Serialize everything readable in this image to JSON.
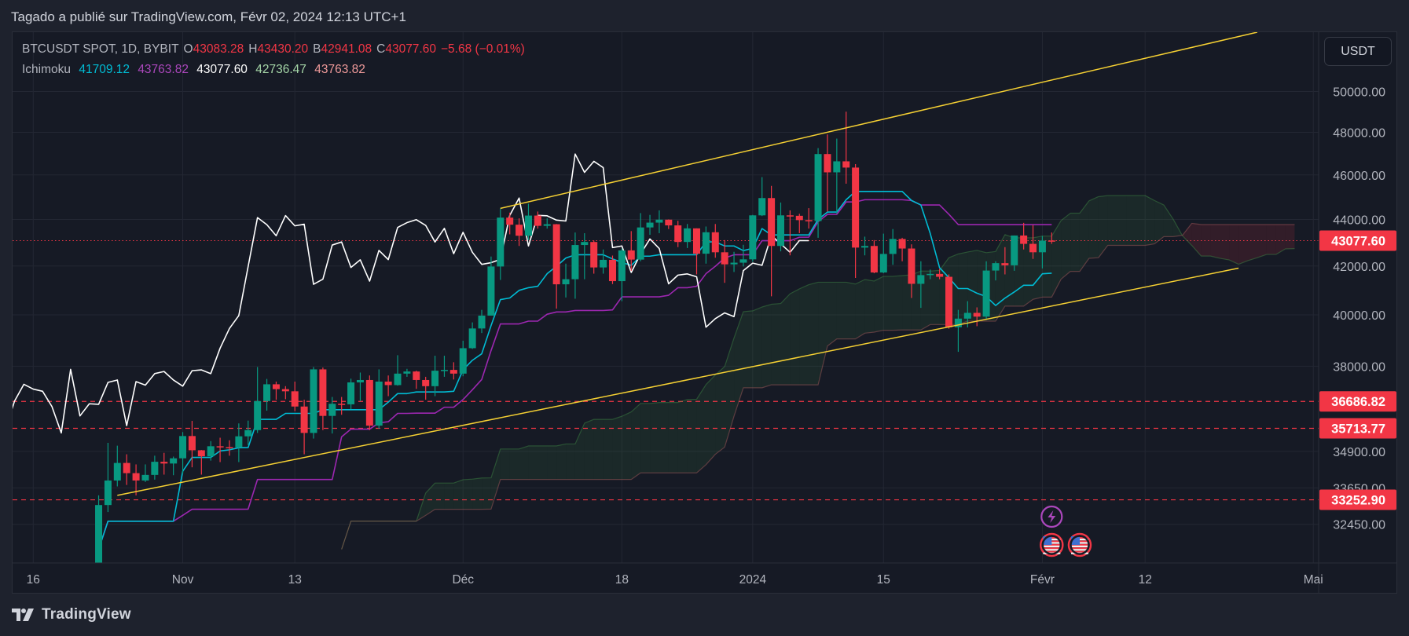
{
  "header": {
    "publisher": "Tagado a publié sur TradingView.com, Févr 02, 2024 12:13 UTC+1"
  },
  "legend": {
    "symbol": "BTCUSDT SPOT, 1D, BYBIT",
    "o_label": "O",
    "o": "43083.28",
    "h_label": "H",
    "h": "43430.20",
    "l_label": "B",
    "l": "42941.08",
    "c_label": "C",
    "c": "43077.60",
    "change": "−5.68 (−0.01%)",
    "indicator": "Ichimoku",
    "conversion": "41709.12",
    "base": "43763.82",
    "lagging": "43077.60",
    "lead_a": "42736.47",
    "lead_b": "43763.82"
  },
  "currency_button": "USDT",
  "footer": {
    "logo_text": "TradingView"
  },
  "colors": {
    "up": "#089981",
    "down": "#f23645",
    "conversion": "#00bcd4",
    "base": "#9c27b0",
    "lagging": "#ffffff",
    "lead_a": "#a5d6a7",
    "lead_b": "#ef9a9a",
    "trendline": "#f5d033",
    "level": "#f23645"
  },
  "chart_data": {
    "type": "candlestick",
    "symbol": "BTCUSDT",
    "interval": "1D",
    "y_scale": "log",
    "ylim": [
      31600,
      51500
    ],
    "grid": true,
    "y_ticks": [
      "50000.00",
      "48000.00",
      "46000.00",
      "44000.00",
      "42000.00",
      "40000.00",
      "38000.00",
      "34900.00",
      "33650.00",
      "32450.00"
    ],
    "x_ticks": [
      {
        "label": "16",
        "date": "2023-10-16"
      },
      {
        "label": "Nov",
        "date": "2023-11-01"
      },
      {
        "label": "13",
        "date": "2023-11-13"
      },
      {
        "label": "Déc",
        "date": "2023-12-01"
      },
      {
        "label": "18",
        "date": "2023-12-18"
      },
      {
        "label": "2024",
        "date": "2024-01-01"
      },
      {
        "label": "15",
        "date": "2024-01-15"
      },
      {
        "label": "Févr",
        "date": "2024-02-01"
      },
      {
        "label": "12",
        "date": "2024-02-12"
      },
      {
        "label": "Mai",
        "date": "2024-03-01"
      }
    ],
    "candles_columns": [
      "date",
      "open",
      "high",
      "low",
      "close"
    ],
    "candles": [
      [
        "2023-10-23",
        29990,
        33400,
        29900,
        33080
      ],
      [
        "2023-10-24",
        33080,
        35200,
        32850,
        33900
      ],
      [
        "2023-10-25",
        33900,
        35100,
        33700,
        34500
      ],
      [
        "2023-10-26",
        34500,
        34800,
        33750,
        34150
      ],
      [
        "2023-10-27",
        34150,
        34450,
        33400,
        33900
      ],
      [
        "2023-10-28",
        33900,
        34450,
        33850,
        34090
      ],
      [
        "2023-10-29",
        34090,
        34750,
        33930,
        34540
      ],
      [
        "2023-10-30",
        34540,
        34850,
        34100,
        34480
      ],
      [
        "2023-10-31",
        34480,
        34720,
        34080,
        34660
      ],
      [
        "2023-11-01",
        34660,
        35580,
        34120,
        35440
      ],
      [
        "2023-11-02",
        35440,
        35980,
        34350,
        34940
      ],
      [
        "2023-11-03",
        34940,
        34950,
        34100,
        34730
      ],
      [
        "2023-11-04",
        34730,
        35260,
        34580,
        35080
      ],
      [
        "2023-11-05",
        35080,
        35380,
        34530,
        35050
      ],
      [
        "2023-11-06",
        35050,
        35290,
        34750,
        35040
      ],
      [
        "2023-11-07",
        35040,
        35890,
        34530,
        35430
      ],
      [
        "2023-11-08",
        35430,
        35990,
        35120,
        35650
      ],
      [
        "2023-11-09",
        35650,
        37970,
        35550,
        36700
      ],
      [
        "2023-11-10",
        36700,
        37520,
        36350,
        37320
      ],
      [
        "2023-11-11",
        37320,
        37420,
        36750,
        37140
      ],
      [
        "2023-11-12",
        37140,
        37250,
        36770,
        37060
      ],
      [
        "2023-11-13",
        37060,
        37420,
        36330,
        36500
      ],
      [
        "2023-11-14",
        36500,
        36750,
        34800,
        35550
      ],
      [
        "2023-11-15",
        35550,
        37970,
        35350,
        37880
      ],
      [
        "2023-11-16",
        37880,
        37950,
        35650,
        36160
      ],
      [
        "2023-11-17",
        36160,
        36850,
        35530,
        36600
      ],
      [
        "2023-11-18",
        36600,
        36850,
        36200,
        36580
      ],
      [
        "2023-11-19",
        36580,
        37530,
        36400,
        37390
      ],
      [
        "2023-11-20",
        37390,
        37760,
        36700,
        37480
      ],
      [
        "2023-11-21",
        37480,
        37650,
        35650,
        35810
      ],
      [
        "2023-11-22",
        35810,
        37880,
        35700,
        37420
      ],
      [
        "2023-11-23",
        37420,
        37650,
        36880,
        37290
      ],
      [
        "2023-11-24",
        37290,
        38420,
        37270,
        37720
      ],
      [
        "2023-11-25",
        37720,
        37900,
        37600,
        37800
      ],
      [
        "2023-11-26",
        37800,
        37830,
        37150,
        37480
      ],
      [
        "2023-11-27",
        37480,
        37600,
        36750,
        37250
      ],
      [
        "2023-11-28",
        37250,
        38400,
        36880,
        37830
      ],
      [
        "2023-11-29",
        37830,
        38400,
        37600,
        37860
      ],
      [
        "2023-11-30",
        37860,
        38150,
        37500,
        37720
      ],
      [
        "2023-12-01",
        37720,
        38980,
        37620,
        38690
      ],
      [
        "2023-12-02",
        38690,
        39700,
        38660,
        39460
      ],
      [
        "2023-12-03",
        39460,
        40200,
        39280,
        39970
      ],
      [
        "2023-12-04",
        39970,
        42400,
        39970,
        41980
      ],
      [
        "2023-12-05",
        41980,
        44480,
        41420,
        44080
      ],
      [
        "2023-12-06",
        44080,
        44300,
        43350,
        43770
      ],
      [
        "2023-12-07",
        43770,
        44050,
        42850,
        43290
      ],
      [
        "2023-12-08",
        43290,
        44700,
        43100,
        44170
      ],
      [
        "2023-12-09",
        44170,
        44350,
        43600,
        43720
      ],
      [
        "2023-12-10",
        43720,
        44050,
        43600,
        43790
      ],
      [
        "2023-12-11",
        43790,
        43800,
        40250,
        41240
      ],
      [
        "2023-12-12",
        41240,
        42100,
        40700,
        41450
      ],
      [
        "2023-12-13",
        41450,
        43430,
        40650,
        42890
      ],
      [
        "2023-12-14",
        42890,
        43400,
        41450,
        43020
      ],
      [
        "2023-12-15",
        43020,
        43080,
        41680,
        41940
      ],
      [
        "2023-12-16",
        41940,
        42700,
        41680,
        42260
      ],
      [
        "2023-12-17",
        42260,
        42440,
        41250,
        41370
      ],
      [
        "2023-12-18",
        41370,
        42740,
        40550,
        42660
      ],
      [
        "2023-12-19",
        42660,
        43490,
        41800,
        42270
      ],
      [
        "2023-12-20",
        42270,
        44280,
        42200,
        43650
      ],
      [
        "2023-12-21",
        43650,
        44200,
        43330,
        43860
      ],
      [
        "2023-12-22",
        43860,
        44400,
        43400,
        43990
      ],
      [
        "2023-12-23",
        43990,
        44000,
        43580,
        43740
      ],
      [
        "2023-12-24",
        43740,
        43940,
        42800,
        43020
      ],
      [
        "2023-12-25",
        43020,
        43800,
        42760,
        43610
      ],
      [
        "2023-12-26",
        43610,
        43610,
        41650,
        42520
      ],
      [
        "2023-12-27",
        42520,
        43690,
        42100,
        43440
      ],
      [
        "2023-12-28",
        43440,
        43800,
        42350,
        42580
      ],
      [
        "2023-12-29",
        42580,
        43100,
        41300,
        42070
      ],
      [
        "2023-12-30",
        42070,
        42600,
        41750,
        42140
      ],
      [
        "2023-12-31",
        42140,
        42900,
        41980,
        42280
      ],
      [
        "2024-01-01",
        42280,
        44200,
        42180,
        44180
      ],
      [
        "2024-01-02",
        44180,
        45900,
        44150,
        44950
      ],
      [
        "2024-01-03",
        44950,
        45500,
        40750,
        42850
      ],
      [
        "2024-01-04",
        42850,
        44750,
        42620,
        44180
      ],
      [
        "2024-01-05",
        44180,
        44400,
        42450,
        44160
      ],
      [
        "2024-01-06",
        44160,
        44250,
        43400,
        43970
      ],
      [
        "2024-01-07",
        43970,
        44500,
        43600,
        43930
      ],
      [
        "2024-01-08",
        43930,
        47250,
        43200,
        46970
      ],
      [
        "2024-01-09",
        46970,
        47900,
        44350,
        46120
      ],
      [
        "2024-01-10",
        46120,
        47700,
        44250,
        46630
      ],
      [
        "2024-01-11",
        46630,
        49000,
        45600,
        46340
      ],
      [
        "2024-01-12",
        46340,
        46500,
        41500,
        42780
      ],
      [
        "2024-01-13",
        42780,
        43250,
        42450,
        42850
      ],
      [
        "2024-01-14",
        42850,
        43100,
        41700,
        41730
      ],
      [
        "2024-01-15",
        41730,
        43380,
        41700,
        42510
      ],
      [
        "2024-01-16",
        42510,
        43580,
        42050,
        43150
      ],
      [
        "2024-01-17",
        43150,
        43200,
        42200,
        42740
      ],
      [
        "2024-01-18",
        42740,
        42920,
        40680,
        41260
      ],
      [
        "2024-01-19",
        41260,
        42200,
        40280,
        41620
      ],
      [
        "2024-01-20",
        41620,
        41850,
        41450,
        41670
      ],
      [
        "2024-01-21",
        41670,
        41880,
        41450,
        41550
      ],
      [
        "2024-01-22",
        41550,
        41650,
        39450,
        39510
      ],
      [
        "2024-01-23",
        39510,
        40200,
        38550,
        39850
      ],
      [
        "2024-01-24",
        39850,
        40550,
        39500,
        40080
      ],
      [
        "2024-01-25",
        40080,
        40300,
        39550,
        39930
      ],
      [
        "2024-01-26",
        39930,
        42200,
        39800,
        41810
      ],
      [
        "2024-01-27",
        41810,
        42200,
        41400,
        42120
      ],
      [
        "2024-01-28",
        42120,
        42800,
        41650,
        42030
      ],
      [
        "2024-01-29",
        42030,
        43300,
        41800,
        43300
      ],
      [
        "2024-01-30",
        43300,
        43850,
        42700,
        42940
      ],
      [
        "2024-01-31",
        42940,
        43750,
        42300,
        42580
      ],
      [
        "2024-02-01",
        42580,
        43280,
        41900,
        43080
      ],
      [
        "2024-02-02",
        43083.28,
        43430.2,
        42941.08,
        43077.6
      ]
    ],
    "ichimoku": {
      "conversion_periods": 9,
      "base_periods": 26,
      "lead_b_periods": 52,
      "displacement": 26
    },
    "trendlines": [
      {
        "points": [
          [
            "2023-12-05",
            44490
          ],
          [
            "2024-02-24",
            53050
          ]
        ]
      },
      {
        "points": [
          [
            "2023-10-25",
            33400
          ],
          [
            "2024-02-22",
            41910
          ]
        ]
      }
    ],
    "horizontal_levels": [
      "36686.82",
      "35713.77",
      "33252.90"
    ],
    "last_price": "43077.60",
    "events": [
      {
        "date": "2024-02-02",
        "icon": "lightning-icon",
        "row": 0
      },
      {
        "date": "2024-02-02",
        "icon": "us-flag-icon",
        "row": 1
      },
      {
        "date": "2024-02-05",
        "icon": "us-flag-icon",
        "row": 1
      }
    ]
  }
}
